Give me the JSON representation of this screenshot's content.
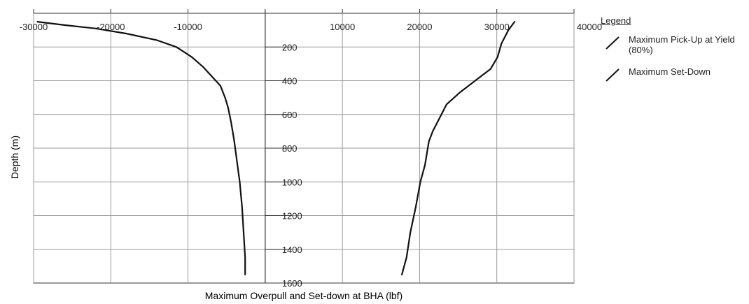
{
  "chart_data": {
    "type": "line",
    "title": "",
    "xlabel": "Maximum Overpull and Set-down at BHA (lbf)",
    "ylabel": "Depth (m)",
    "xlim": [
      -30000,
      40000
    ],
    "ylim": [
      0,
      1600
    ],
    "y_inverted": true,
    "grid": true,
    "x_ticks": [
      -30000,
      -20000,
      -10000,
      10000,
      20000,
      30000,
      40000
    ],
    "y_ticks": [
      200,
      400,
      600,
      800,
      1000,
      1200,
      1400,
      1600
    ],
    "legend_title": "Legend",
    "legend_position": "right",
    "series": [
      {
        "name": "Maximum Pick-Up at Yield (80%)",
        "color": "#111111",
        "points": [
          [
            32300,
            50
          ],
          [
            31500,
            100
          ],
          [
            30600,
            180
          ],
          [
            30100,
            260
          ],
          [
            29200,
            330
          ],
          [
            27200,
            400
          ],
          [
            25200,
            470
          ],
          [
            23500,
            540
          ],
          [
            22600,
            620
          ],
          [
            21700,
            700
          ],
          [
            21200,
            760
          ],
          [
            20700,
            900
          ],
          [
            20100,
            1000
          ],
          [
            19500,
            1150
          ],
          [
            18800,
            1300
          ],
          [
            18300,
            1450
          ],
          [
            17700,
            1550
          ]
        ]
      },
      {
        "name": "Maximum Set-Down",
        "color": "#111111",
        "points": [
          [
            -29500,
            50
          ],
          [
            -26000,
            70
          ],
          [
            -22000,
            90
          ],
          [
            -18000,
            120
          ],
          [
            -14000,
            160
          ],
          [
            -11500,
            200
          ],
          [
            -9500,
            260
          ],
          [
            -8000,
            320
          ],
          [
            -6800,
            380
          ],
          [
            -5800,
            430
          ],
          [
            -5200,
            500
          ],
          [
            -4800,
            560
          ],
          [
            -4400,
            650
          ],
          [
            -4000,
            760
          ],
          [
            -3600,
            900
          ],
          [
            -3300,
            1000
          ],
          [
            -3000,
            1150
          ],
          [
            -2800,
            1300
          ],
          [
            -2600,
            1450
          ],
          [
            -2600,
            1550
          ]
        ]
      }
    ]
  }
}
